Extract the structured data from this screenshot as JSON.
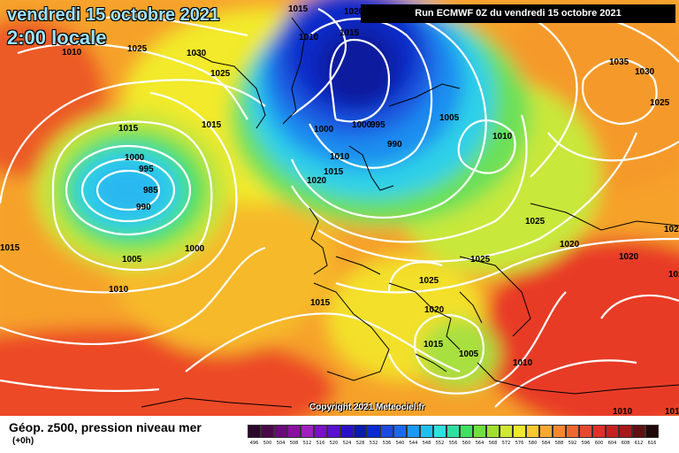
{
  "header": {
    "date_line": "vendredi 15 octobre 2021",
    "time_line": "2:00 locale",
    "run_info": "Run ECMWF 0Z du vendredi 15 octobre 2021"
  },
  "footer": {
    "parameter": "Géop. z500, pression niveau mer",
    "forecast_hour": "(+0h)",
    "copyright": "Copyright 2021 Meteociel.fr"
  },
  "colors": {
    "blue_deep": "#0a1a9e",
    "blue": "#1f5ae0",
    "cyan": "#2fd0e8",
    "green": "#50e060",
    "yellow": "#f2ea2a",
    "orange": "#f59a2a",
    "red": "#ec3a26"
  },
  "scale": {
    "labels": [
      "496",
      "500",
      "504",
      "508",
      "512",
      "516",
      "520",
      "524",
      "528",
      "532",
      "536",
      "540",
      "544",
      "548",
      "552",
      "556",
      "560",
      "564",
      "568",
      "572",
      "576",
      "580",
      "584",
      "588",
      "592",
      "596",
      "600",
      "604",
      "608",
      "612",
      "616"
    ],
    "colors": [
      "#2a0a2a",
      "#4a0a4a",
      "#6a0a7a",
      "#8a10a0",
      "#a020c0",
      "#7a10c8",
      "#5a10d0",
      "#2a10c8",
      "#0a1ab0",
      "#0a2ad0",
      "#1a4ae0",
      "#1a6af0",
      "#1a9af5",
      "#20c0f0",
      "#30e0e0",
      "#30e0a0",
      "#40e060",
      "#70e040",
      "#a0e030",
      "#d0e830",
      "#f0e830",
      "#f8c830",
      "#f8a830",
      "#f88830",
      "#f06830",
      "#e84830",
      "#e03028",
      "#c82020",
      "#a81818",
      "#601010",
      "#200808"
    ]
  },
  "pressure_labels": [
    {
      "text": "1015"
    },
    {
      "text": "1020"
    },
    {
      "text": "1010"
    },
    {
      "text": "1015"
    },
    {
      "text": "1025"
    },
    {
      "text": "1030"
    },
    {
      "text": "1010"
    },
    {
      "text": "1025"
    },
    {
      "text": "1015"
    },
    {
      "text": "1015"
    },
    {
      "text": "1000"
    },
    {
      "text": "995"
    },
    {
      "text": "985"
    },
    {
      "text": "990"
    },
    {
      "text": "1000"
    },
    {
      "text": "1000"
    },
    {
      "text": "995"
    },
    {
      "text": "990"
    },
    {
      "text": "1005"
    },
    {
      "text": "1010"
    },
    {
      "text": "1010"
    },
    {
      "text": "1015"
    },
    {
      "text": "1020"
    },
    {
      "text": "1035"
    },
    {
      "text": "1030"
    },
    {
      "text": "1025"
    },
    {
      "text": "1025"
    },
    {
      "text": "1020"
    },
    {
      "text": "1020"
    },
    {
      "text": "1020"
    },
    {
      "text": "1025"
    },
    {
      "text": "1025"
    },
    {
      "text": "1020"
    },
    {
      "text": "1015"
    },
    {
      "text": "1005"
    },
    {
      "text": "1010"
    },
    {
      "text": "1015"
    },
    {
      "text": "1015"
    },
    {
      "text": "1005"
    },
    {
      "text": "1000"
    },
    {
      "text": "1010"
    },
    {
      "text": "1020"
    },
    {
      "text": "1010"
    },
    {
      "text": "1010"
    }
  ]
}
